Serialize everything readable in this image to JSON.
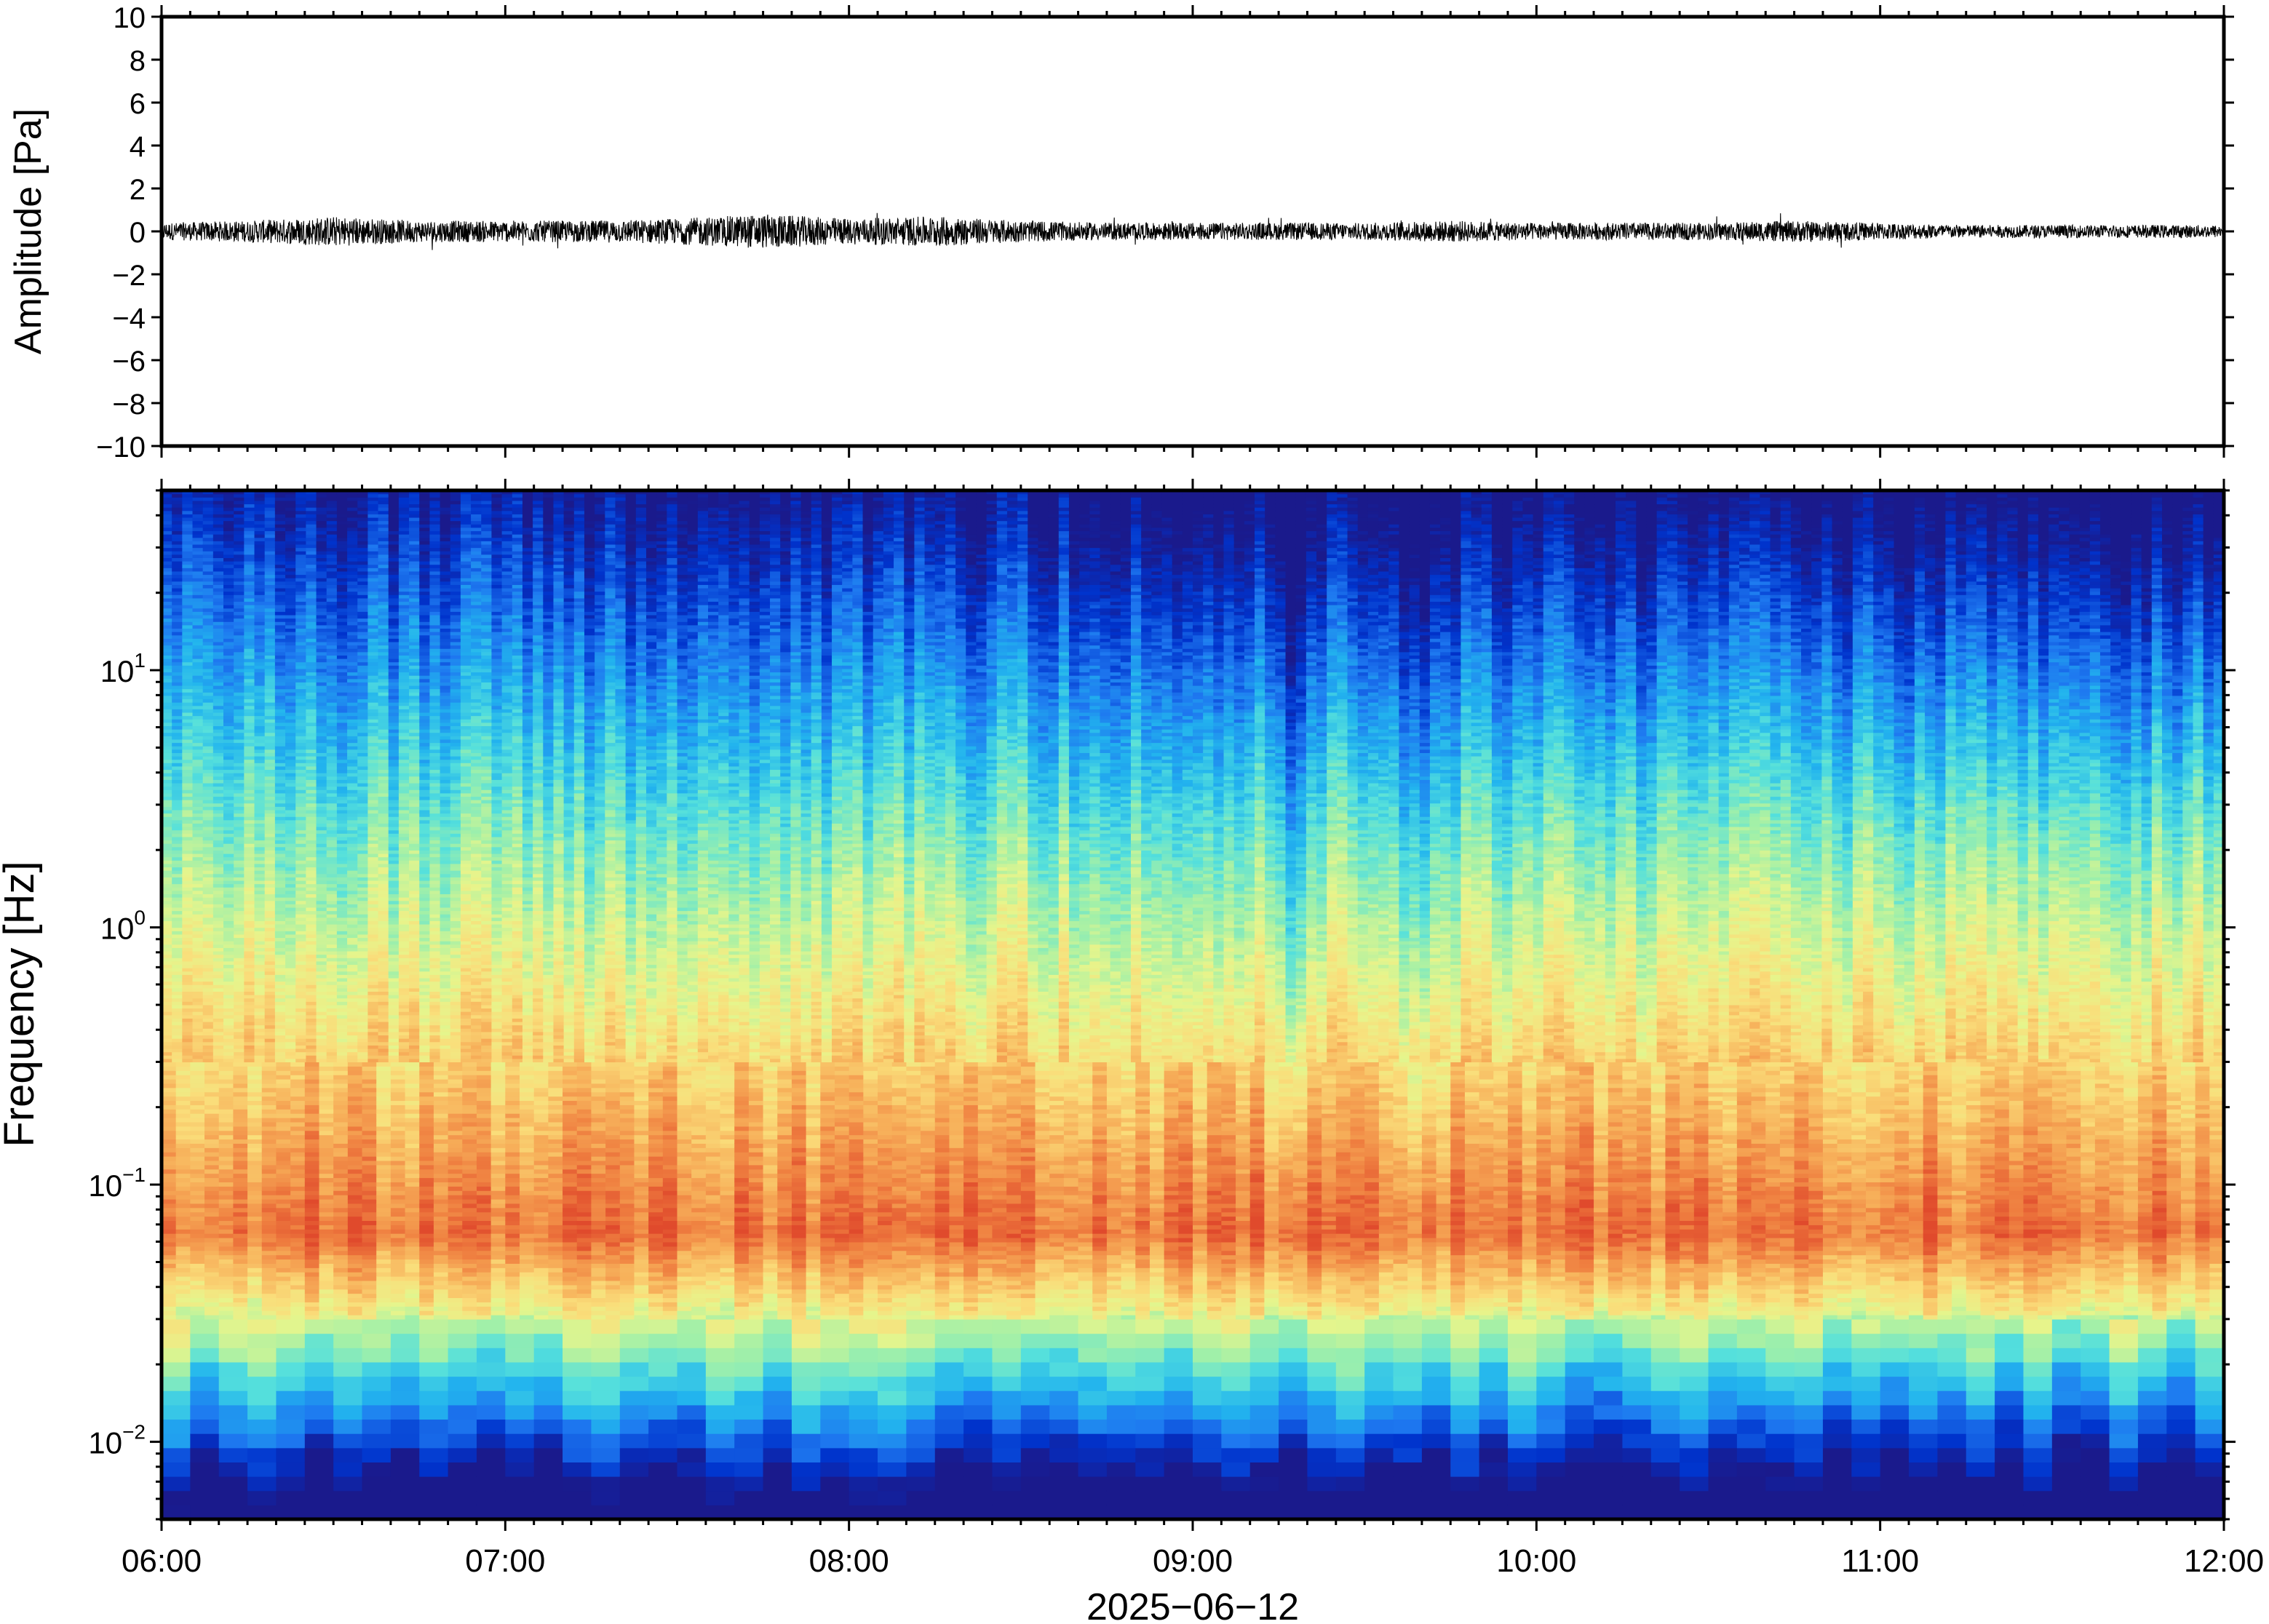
{
  "chart_data": [
    {
      "type": "line",
      "title": "",
      "xlabel": "",
      "ylabel": "Amplitude [Pa]",
      "ylim": [
        -10,
        10
      ],
      "yticks": [
        10,
        8,
        6,
        4,
        2,
        0,
        -2,
        -4,
        -6,
        -8,
        -10
      ],
      "ytick_labels": [
        "10",
        "8",
        "6",
        "4",
        "2",
        "0",
        "−2",
        "−4",
        "−6",
        "−8",
        "−10"
      ],
      "x": [
        "06:00",
        "06:15",
        "06:30",
        "06:45",
        "07:00",
        "07:15",
        "07:30",
        "07:45",
        "08:00",
        "08:15",
        "08:30",
        "08:45",
        "09:00",
        "09:15",
        "09:30",
        "09:45",
        "10:00",
        "10:15",
        "10:30",
        "10:45",
        "11:00",
        "11:15",
        "11:30",
        "11:45",
        "12:00"
      ],
      "series": [
        {
          "values": [
            0.4,
            0.5,
            0.7,
            0.5,
            0.5,
            0.5,
            0.6,
            0.8,
            0.6,
            0.7,
            0.5,
            0.4,
            0.4,
            0.4,
            0.4,
            0.5,
            0.4,
            0.4,
            0.4,
            0.5,
            0.4,
            0.3,
            0.3,
            0.3,
            0.3
          ]
        }
      ],
      "grid": false
    },
    {
      "type": "heatmap",
      "title": "",
      "xlabel": "2025−06−12",
      "ylabel": "Frequency [Hz]",
      "y_scale": "log",
      "ylim": [
        0.005,
        50
      ],
      "yticks": [
        0.01,
        0.1,
        1,
        10
      ],
      "ytick_labels": [
        {
          "base": "10",
          "exp": "−2"
        },
        {
          "base": "10",
          "exp": "−1"
        },
        {
          "base": "10",
          "exp": "0"
        },
        {
          "base": "10",
          "exp": "1"
        }
      ],
      "xlim": [
        "06:00",
        "12:00"
      ],
      "xtick_labels": [
        "06:00",
        "07:00",
        "08:00",
        "09:00",
        "10:00",
        "11:00",
        "12:00"
      ],
      "colormap": [
        "#1a1a8c",
        "#0033cc",
        "#1e78f0",
        "#22b4ee",
        "#55e0dc",
        "#a2f0a8",
        "#e6f58c",
        "#fadd7a",
        "#f7b05a",
        "#ef7f40",
        "#e04a2c"
      ],
      "energy_peak_hz": 0.065,
      "quiet_times": [
        "09:18",
        "09:40"
      ],
      "grid": false
    }
  ]
}
